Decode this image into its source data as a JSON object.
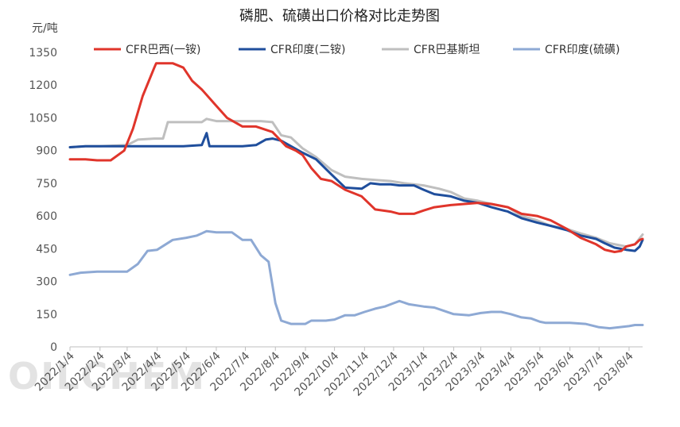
{
  "chart_data": {
    "type": "line",
    "title": "磷肥、硫磺出口价格对比走势图",
    "ylabel": "元/吨",
    "ylim": [
      0,
      1350
    ],
    "yticks": [
      0,
      150,
      300,
      450,
      600,
      750,
      900,
      1050,
      1200,
      1350
    ],
    "grid": false,
    "legend_position": "top",
    "watermark": "OILCHEM",
    "x_tick_labels": [
      "2022/1/4",
      "2022/2/4",
      "2022/3/4",
      "2022/4/4",
      "2022/5/4",
      "2022/6/4",
      "2022/7/4",
      "2022/8/4",
      "2022/9/4",
      "2022/10/4",
      "2022/11/4",
      "2022/12/4",
      "2023/1/4",
      "2023/2/4",
      "2023/3/4",
      "2023/4/4",
      "2023/5/4",
      "2023/6/4",
      "2023/7/4",
      "2023/8/4"
    ],
    "series": [
      {
        "name": "CFR巴西(一铵)",
        "color": "#e0352b",
        "points": [
          [
            "2022/1/4",
            860
          ],
          [
            "2022/1/20",
            860
          ],
          [
            "2022/2/1",
            855
          ],
          [
            "2022/2/15",
            855
          ],
          [
            "2022/3/1",
            900
          ],
          [
            "2022/3/10",
            1000
          ],
          [
            "2022/3/20",
            1150
          ],
          [
            "2022/4/1",
            1280
          ],
          [
            "2022/4/3",
            1300
          ],
          [
            "2022/4/20",
            1300
          ],
          [
            "2022/5/1",
            1280
          ],
          [
            "2022/5/10",
            1220
          ],
          [
            "2022/5/20",
            1180
          ],
          [
            "2022/6/1",
            1120
          ],
          [
            "2022/6/15",
            1050
          ],
          [
            "2022/7/1",
            1010
          ],
          [
            "2022/7/15",
            1010
          ],
          [
            "2022/8/1",
            985
          ],
          [
            "2022/8/15",
            920
          ],
          [
            "2022/8/25",
            900
          ],
          [
            "2022/9/1",
            880
          ],
          [
            "2022/9/10",
            820
          ],
          [
            "2022/9/20",
            770
          ],
          [
            "2022/10/1",
            760
          ],
          [
            "2022/10/15",
            720
          ],
          [
            "2022/11/1",
            690
          ],
          [
            "2022/11/15",
            630
          ],
          [
            "2022/12/1",
            620
          ],
          [
            "2022/12/10",
            610
          ],
          [
            "2022/12/25",
            610
          ],
          [
            "2023/1/4",
            625
          ],
          [
            "2023/1/15",
            640
          ],
          [
            "2023/2/1",
            650
          ],
          [
            "2023/2/15",
            655
          ],
          [
            "2023/3/1",
            660
          ],
          [
            "2023/3/15",
            655
          ],
          [
            "2023/4/1",
            640
          ],
          [
            "2023/4/15",
            610
          ],
          [
            "2023/5/1",
            600
          ],
          [
            "2023/5/15",
            580
          ],
          [
            "2023/6/1",
            540
          ],
          [
            "2023/6/15",
            500
          ],
          [
            "2023/7/1",
            470
          ],
          [
            "2023/7/10",
            445
          ],
          [
            "2023/7/20",
            435
          ],
          [
            "2023/7/27",
            440
          ],
          [
            "2023/8/1",
            460
          ],
          [
            "2023/8/10",
            470
          ],
          [
            "2023/8/15",
            490
          ],
          [
            "2023/8/18",
            495
          ]
        ]
      },
      {
        "name": "CFR印度(二铵)",
        "color": "#1f4e9c",
        "points": [
          [
            "2022/1/4",
            915
          ],
          [
            "2022/1/20",
            920
          ],
          [
            "2022/2/4",
            920
          ],
          [
            "2022/3/1",
            920
          ],
          [
            "2022/4/1",
            920
          ],
          [
            "2022/5/1",
            920
          ],
          [
            "2022/5/20",
            925
          ],
          [
            "2022/5/25",
            980
          ],
          [
            "2022/5/28",
            920
          ],
          [
            "2022/6/15",
            920
          ],
          [
            "2022/7/1",
            920
          ],
          [
            "2022/7/15",
            925
          ],
          [
            "2022/7/25",
            950
          ],
          [
            "2022/8/1",
            955
          ],
          [
            "2022/8/10",
            945
          ],
          [
            "2022/8/20",
            920
          ],
          [
            "2022/9/1",
            890
          ],
          [
            "2022/9/15",
            860
          ],
          [
            "2022/10/1",
            790
          ],
          [
            "2022/10/15",
            730
          ],
          [
            "2022/11/1",
            725
          ],
          [
            "2022/11/10",
            750
          ],
          [
            "2022/11/20",
            745
          ],
          [
            "2022/12/1",
            745
          ],
          [
            "2022/12/10",
            740
          ],
          [
            "2022/12/25",
            740
          ],
          [
            "2023/1/4",
            720
          ],
          [
            "2023/1/15",
            700
          ],
          [
            "2023/2/1",
            690
          ],
          [
            "2023/2/15",
            670
          ],
          [
            "2023/3/1",
            660
          ],
          [
            "2023/3/15",
            640
          ],
          [
            "2023/4/1",
            620
          ],
          [
            "2023/4/15",
            590
          ],
          [
            "2023/5/1",
            570
          ],
          [
            "2023/5/15",
            555
          ],
          [
            "2023/6/1",
            535
          ],
          [
            "2023/6/15",
            510
          ],
          [
            "2023/7/1",
            495
          ],
          [
            "2023/7/10",
            475
          ],
          [
            "2023/7/20",
            455
          ],
          [
            "2023/8/1",
            445
          ],
          [
            "2023/8/10",
            440
          ],
          [
            "2023/8/15",
            460
          ],
          [
            "2023/8/18",
            490
          ]
        ]
      },
      {
        "name": "CFR巴基斯坦",
        "color": "#bfbfbf",
        "points": [
          [
            "2022/1/4",
            915
          ],
          [
            "2022/1/20",
            920
          ],
          [
            "2022/2/4",
            920
          ],
          [
            "2022/3/4",
            925
          ],
          [
            "2022/3/15",
            950
          ],
          [
            "2022/4/1",
            955
          ],
          [
            "2022/4/10",
            955
          ],
          [
            "2022/4/15",
            1030
          ],
          [
            "2022/5/4",
            1030
          ],
          [
            "2022/5/20",
            1030
          ],
          [
            "2022/5/25",
            1045
          ],
          [
            "2022/6/4",
            1035
          ],
          [
            "2022/6/20",
            1035
          ],
          [
            "2022/7/4",
            1035
          ],
          [
            "2022/7/20",
            1035
          ],
          [
            "2022/8/1",
            1030
          ],
          [
            "2022/8/10",
            970
          ],
          [
            "2022/8/20",
            960
          ],
          [
            "2022/9/1",
            910
          ],
          [
            "2022/9/15",
            870
          ],
          [
            "2022/10/1",
            810
          ],
          [
            "2022/10/15",
            780
          ],
          [
            "2022/11/1",
            770
          ],
          [
            "2022/11/15",
            765
          ],
          [
            "2022/12/1",
            760
          ],
          [
            "2022/12/15",
            750
          ],
          [
            "2023/1/4",
            740
          ],
          [
            "2023/1/20",
            725
          ],
          [
            "2023/2/1",
            710
          ],
          [
            "2023/2/15",
            680
          ],
          [
            "2023/3/1",
            670
          ],
          [
            "2023/3/15",
            655
          ],
          [
            "2023/4/1",
            640
          ],
          [
            "2023/4/15",
            600
          ],
          [
            "2023/5/1",
            580
          ],
          [
            "2023/5/15",
            555
          ],
          [
            "2023/6/1",
            540
          ],
          [
            "2023/6/15",
            520
          ],
          [
            "2023/7/1",
            500
          ],
          [
            "2023/7/15",
            475
          ],
          [
            "2023/8/1",
            460
          ],
          [
            "2023/8/10",
            470
          ],
          [
            "2023/8/18",
            515
          ]
        ]
      },
      {
        "name": "CFR印度(硫磺)",
        "color": "#8ea9d4",
        "points": [
          [
            "2022/1/4",
            330
          ],
          [
            "2022/1/15",
            340
          ],
          [
            "2022/2/1",
            345
          ],
          [
            "2022/2/15",
            345
          ],
          [
            "2022/3/4",
            345
          ],
          [
            "2022/3/15",
            380
          ],
          [
            "2022/3/25",
            440
          ],
          [
            "2022/4/4",
            445
          ],
          [
            "2022/4/20",
            490
          ],
          [
            "2022/5/4",
            500
          ],
          [
            "2022/5/15",
            510
          ],
          [
            "2022/5/25",
            530
          ],
          [
            "2022/6/4",
            525
          ],
          [
            "2022/6/20",
            525
          ],
          [
            "2022/7/1",
            490
          ],
          [
            "2022/7/10",
            490
          ],
          [
            "2022/7/20",
            420
          ],
          [
            "2022/7/28",
            390
          ],
          [
            "2022/8/4",
            200
          ],
          [
            "2022/8/10",
            120
          ],
          [
            "2022/8/20",
            105
          ],
          [
            "2022/9/4",
            105
          ],
          [
            "2022/9/10",
            120
          ],
          [
            "2022/9/25",
            120
          ],
          [
            "2022/10/4",
            125
          ],
          [
            "2022/10/15",
            145
          ],
          [
            "2022/10/25",
            145
          ],
          [
            "2022/11/4",
            160
          ],
          [
            "2022/11/15",
            175
          ],
          [
            "2022/11/25",
            185
          ],
          [
            "2022/12/4",
            200
          ],
          [
            "2022/12/10",
            210
          ],
          [
            "2022/12/20",
            195
          ],
          [
            "2023/1/4",
            185
          ],
          [
            "2023/1/15",
            180
          ],
          [
            "2023/1/25",
            165
          ],
          [
            "2023/2/4",
            150
          ],
          [
            "2023/2/20",
            145
          ],
          [
            "2023/3/4",
            155
          ],
          [
            "2023/3/15",
            160
          ],
          [
            "2023/3/25",
            160
          ],
          [
            "2023/4/4",
            150
          ],
          [
            "2023/4/15",
            135
          ],
          [
            "2023/4/25",
            130
          ],
          [
            "2023/5/4",
            115
          ],
          [
            "2023/5/10",
            110
          ],
          [
            "2023/5/25",
            110
          ],
          [
            "2023/6/4",
            110
          ],
          [
            "2023/6/20",
            105
          ],
          [
            "2023/7/4",
            90
          ],
          [
            "2023/7/15",
            85
          ],
          [
            "2023/7/25",
            90
          ],
          [
            "2023/8/4",
            95
          ],
          [
            "2023/8/10",
            100
          ],
          [
            "2023/8/18",
            100
          ]
        ]
      }
    ]
  }
}
